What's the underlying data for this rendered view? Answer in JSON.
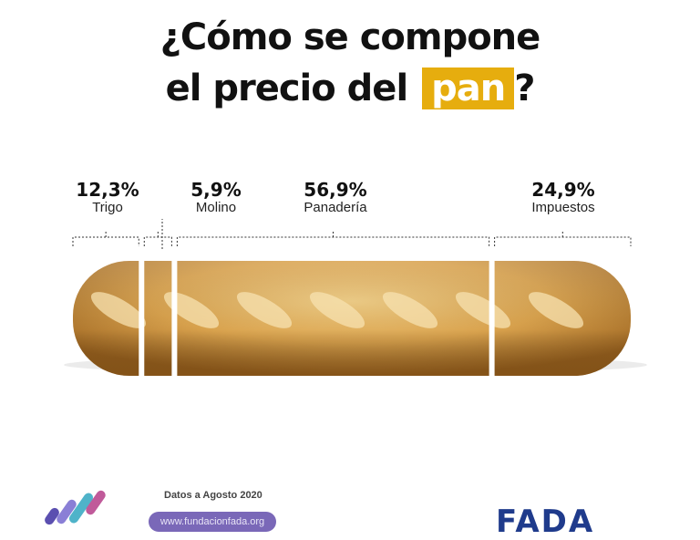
{
  "title": {
    "line1": "¿Cómo se compone",
    "line2_prefix": "el precio del ",
    "line2_highlight": "pan",
    "line2_suffix": "?"
  },
  "colors": {
    "highlight": "#e6ad0e",
    "text": "#111111",
    "brand_purple": "#7a68b8",
    "brand_blue": "#1f3b8c"
  },
  "chart_data": {
    "type": "bar",
    "categories": [
      "Trigo",
      "Molino",
      "Panadería",
      "Impuestos"
    ],
    "values": [
      12.3,
      5.9,
      56.9,
      24.9
    ],
    "value_labels": [
      "12,3%",
      "5,9%",
      "56,9%",
      "24,9%"
    ],
    "title": "¿Cómo se compone el precio del pan?"
  },
  "footer": {
    "date_note": "Datos a Agosto 2020",
    "url": "www.fundacionfada.org",
    "brand": "FADA"
  }
}
